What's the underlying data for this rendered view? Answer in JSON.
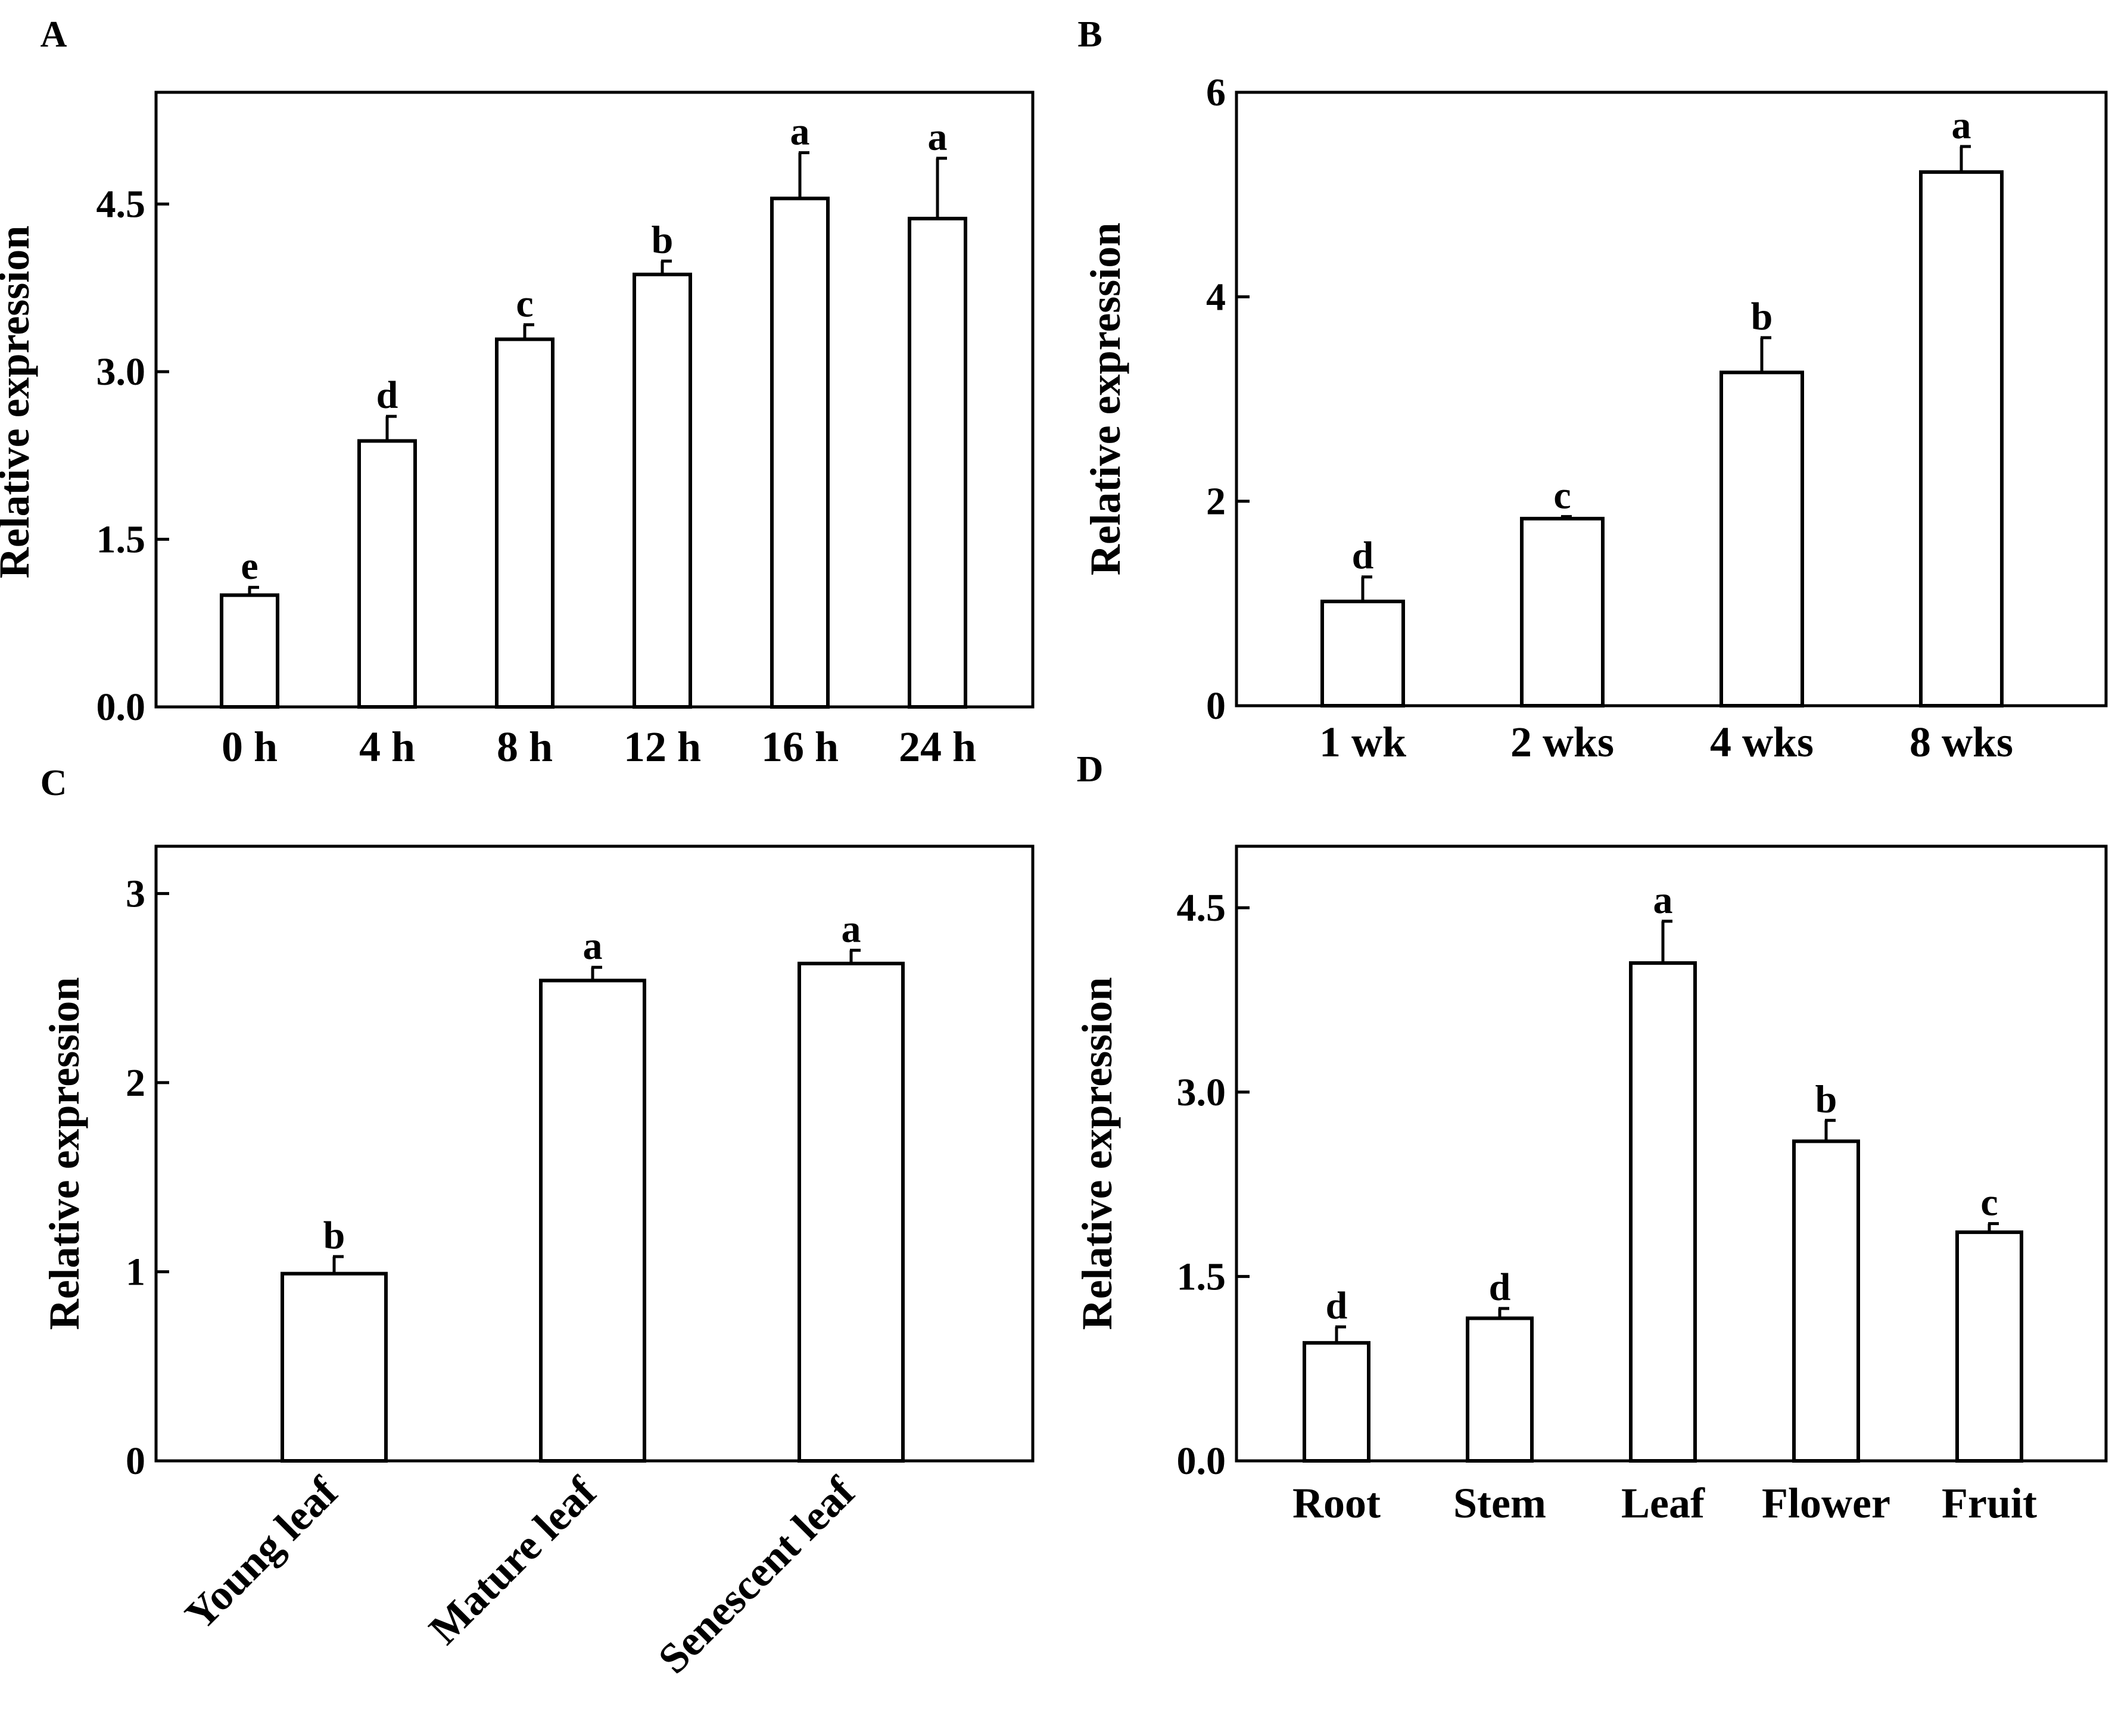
{
  "chart_data": [
    {
      "panel": "A",
      "type": "bar",
      "ylabel": "Relative expression",
      "ylim": [
        0,
        5.5
      ],
      "yticks": [
        "0.0",
        "1.5",
        "3.0",
        "4.5"
      ],
      "categories": [
        "0 h",
        "4 h",
        "8 h",
        "12 h",
        "16 h",
        "24 h"
      ],
      "values": [
        1.0,
        2.38,
        3.29,
        3.87,
        4.55,
        4.37
      ],
      "errors": [
        0.07,
        0.22,
        0.13,
        0.12,
        0.41,
        0.54
      ],
      "letters": [
        "e",
        "d",
        "c",
        "b",
        "a",
        "a"
      ],
      "bar_fill": "#ffffff",
      "stroke": "#000000"
    },
    {
      "panel": "B",
      "type": "bar",
      "ylabel": "Relative expression",
      "ylim": [
        0,
        6
      ],
      "yticks": [
        "0",
        "2",
        "4",
        "6"
      ],
      "categories": [
        "1 wk",
        "2 wks",
        "4 wks",
        "8 wks"
      ],
      "values": [
        1.02,
        1.83,
        3.26,
        5.22
      ],
      "errors": [
        0.24,
        0.02,
        0.34,
        0.25
      ],
      "letters": [
        "d",
        "c",
        "b",
        "a"
      ],
      "bar_fill": "#ffffff",
      "stroke": "#000000"
    },
    {
      "panel": "C",
      "type": "bar",
      "ylabel": "Relative expression",
      "ylim": [
        0,
        3.25
      ],
      "yticks": [
        "0",
        "1",
        "2",
        "3"
      ],
      "categories": [
        "Young leaf",
        "Mature leaf",
        "Senescent leaf"
      ],
      "values": [
        0.99,
        2.54,
        2.63
      ],
      "errors": [
        0.09,
        0.07,
        0.07
      ],
      "letters": [
        "b",
        "a",
        "a"
      ],
      "bar_fill": "#ffffff",
      "stroke": "#000000"
    },
    {
      "panel": "D",
      "type": "bar",
      "ylabel": "Relative expression",
      "ylim": [
        0,
        5.0
      ],
      "yticks": [
        "0.0",
        "1.5",
        "3.0",
        "4.5"
      ],
      "categories": [
        "Root",
        "Stem",
        "Leaf",
        "Flower",
        "Fruit"
      ],
      "values": [
        0.96,
        1.16,
        4.05,
        2.6,
        1.86
      ],
      "errors": [
        0.13,
        0.08,
        0.34,
        0.17,
        0.07
      ],
      "letters": [
        "d",
        "d",
        "a",
        "b",
        "c"
      ],
      "bar_fill": "#ffffff",
      "stroke": "#000000"
    }
  ]
}
